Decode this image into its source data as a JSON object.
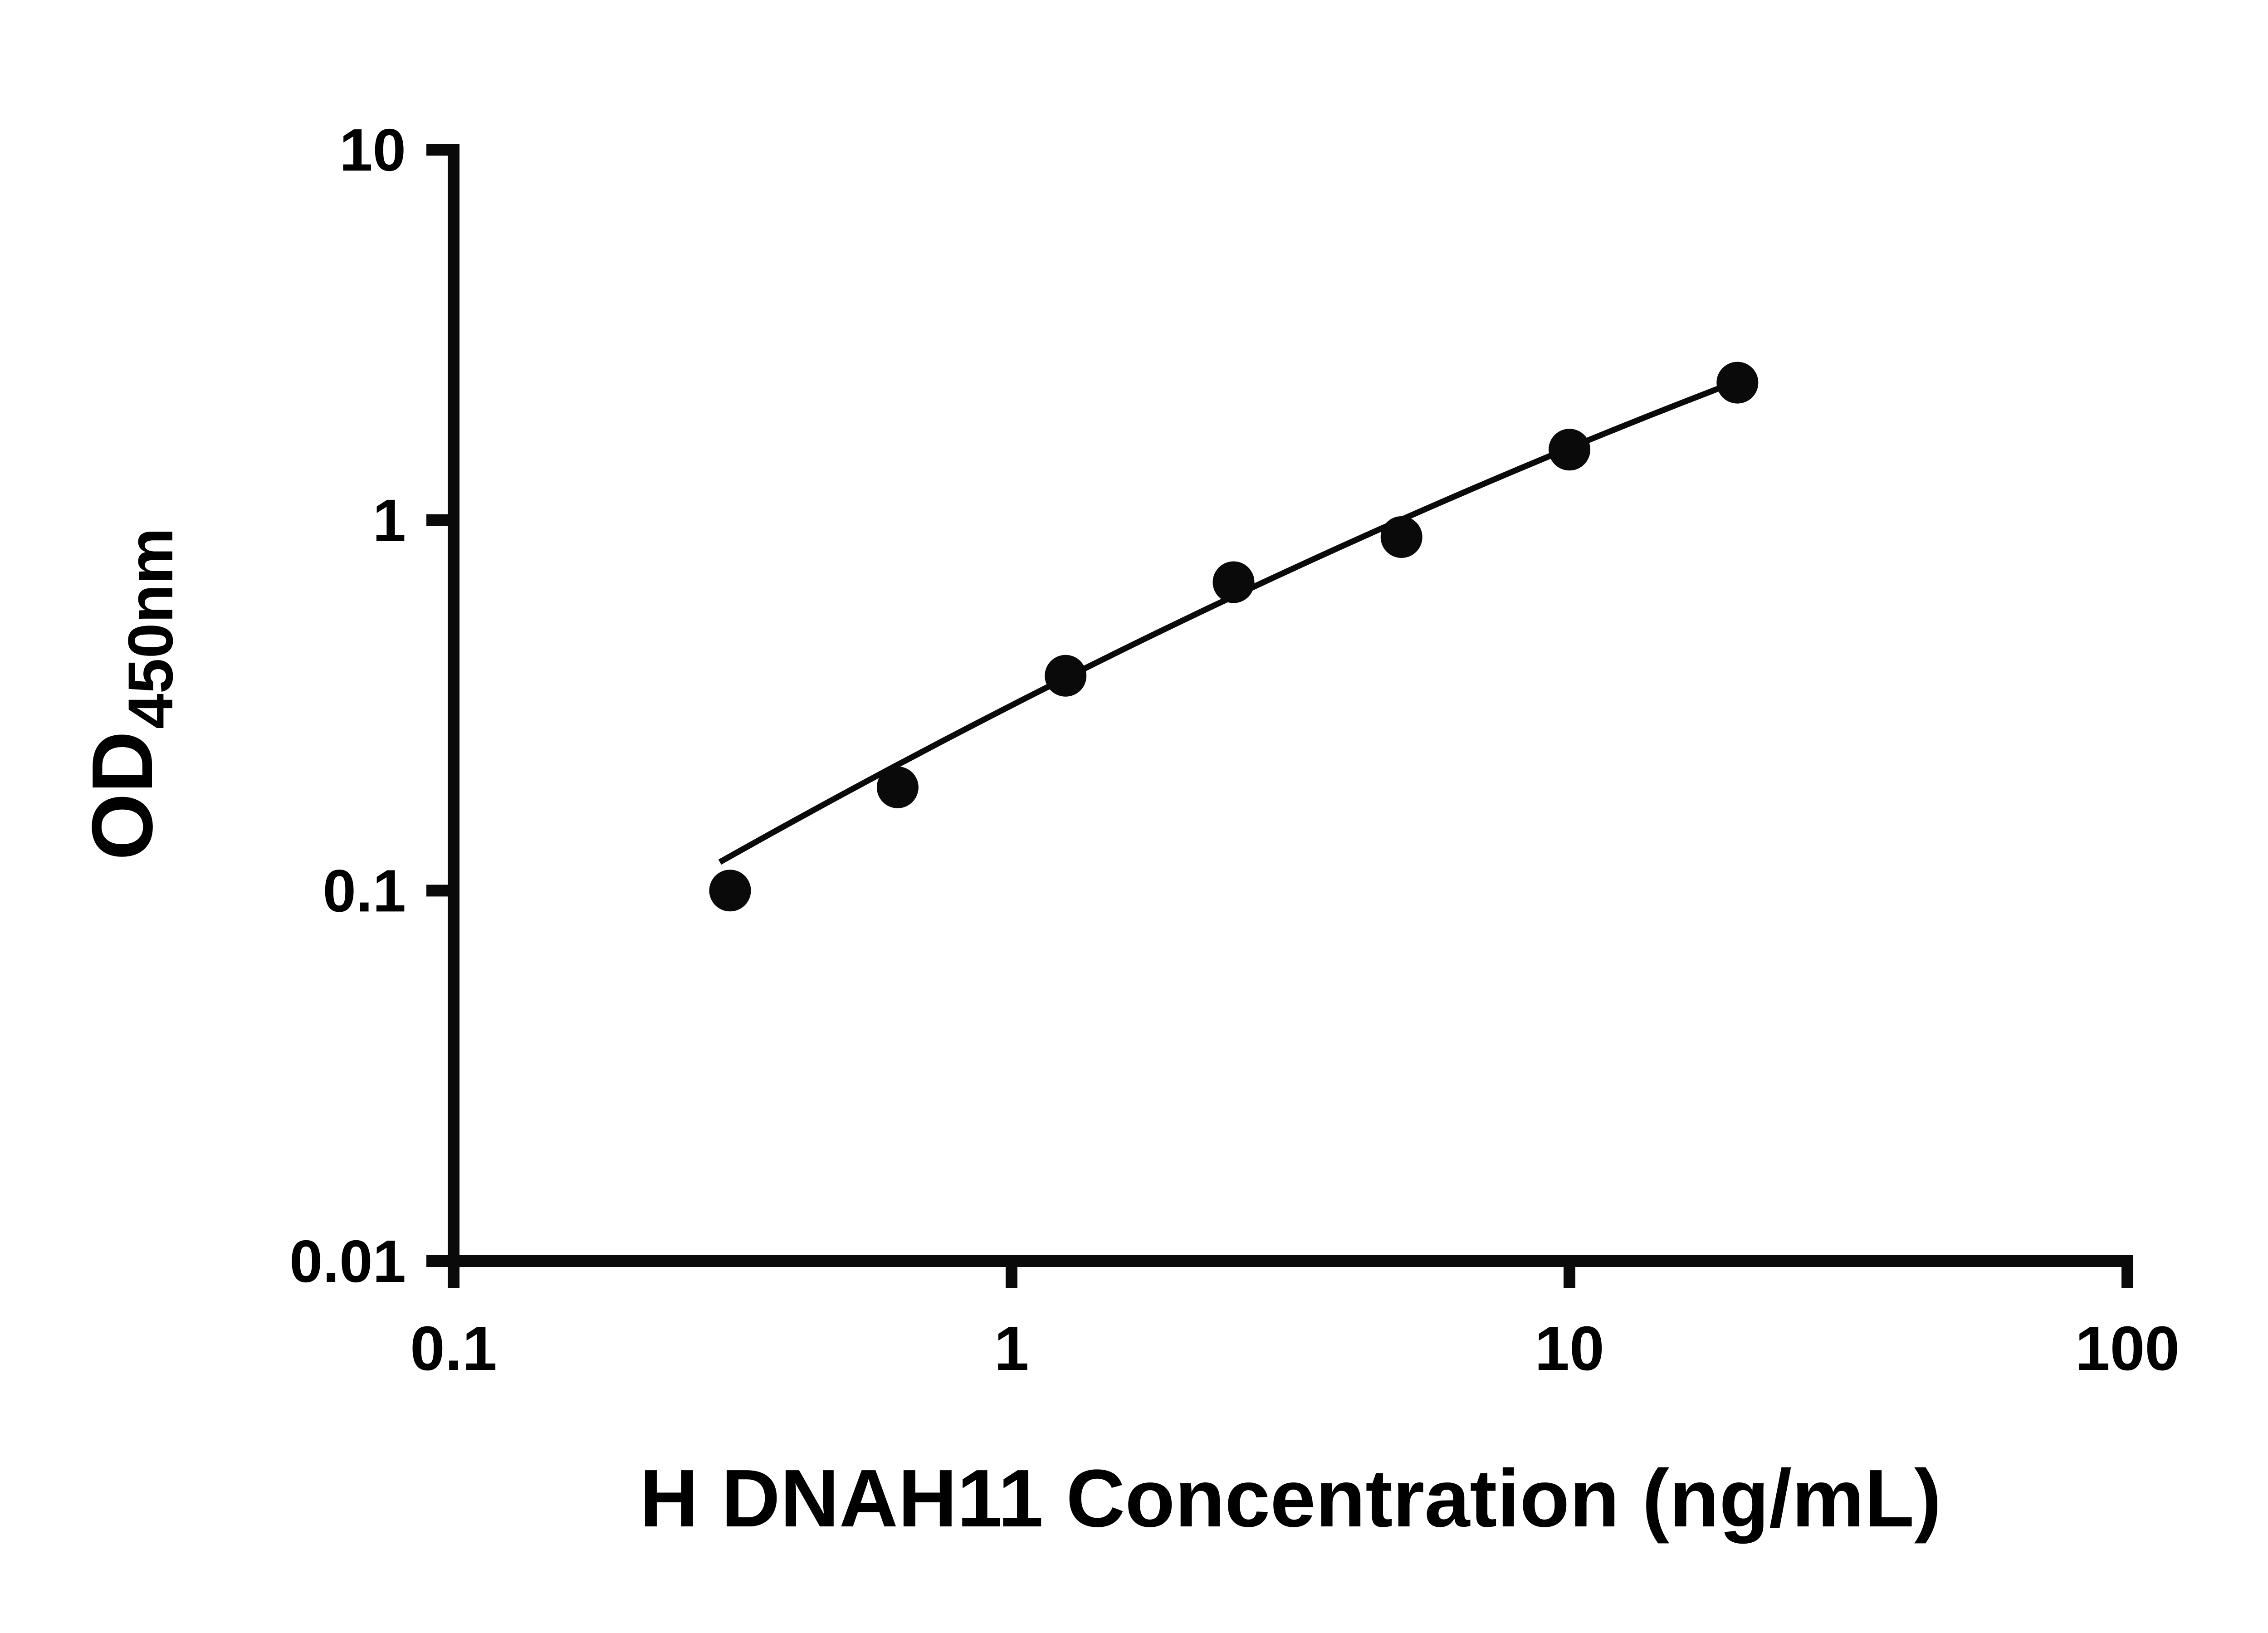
{
  "chart_data": {
    "type": "scatter",
    "xlabel": "H DNAH11 Concentration (ng/mL)",
    "ylabel_main": "OD",
    "ylabel_sub": "450nm",
    "x_scale": "log",
    "y_scale": "log",
    "xlim": [
      0.1,
      100
    ],
    "ylim": [
      0.01,
      10
    ],
    "x_ticks": [
      "0.1",
      "1",
      "10",
      "100"
    ],
    "y_ticks": [
      "0.01",
      "0.1",
      "1",
      "10"
    ],
    "grid": false,
    "legend": false,
    "marker_color": "#0a0a0a",
    "line_color": "#0a0a0a",
    "series": [
      {
        "name": "standard-points",
        "type": "scatter",
        "x": [
          0.313,
          0.625,
          1.25,
          2.5,
          5,
          10,
          20
        ],
        "y": [
          0.1,
          0.19,
          0.38,
          0.68,
          0.9,
          1.55,
          2.35
        ]
      },
      {
        "name": "fit-curve",
        "type": "line",
        "fit_loglog_quadratic": {
          "a": -0.5,
          "b": 0.77,
          "c": -0.075
        },
        "x_range": [
          0.3,
          20.6
        ]
      }
    ]
  }
}
